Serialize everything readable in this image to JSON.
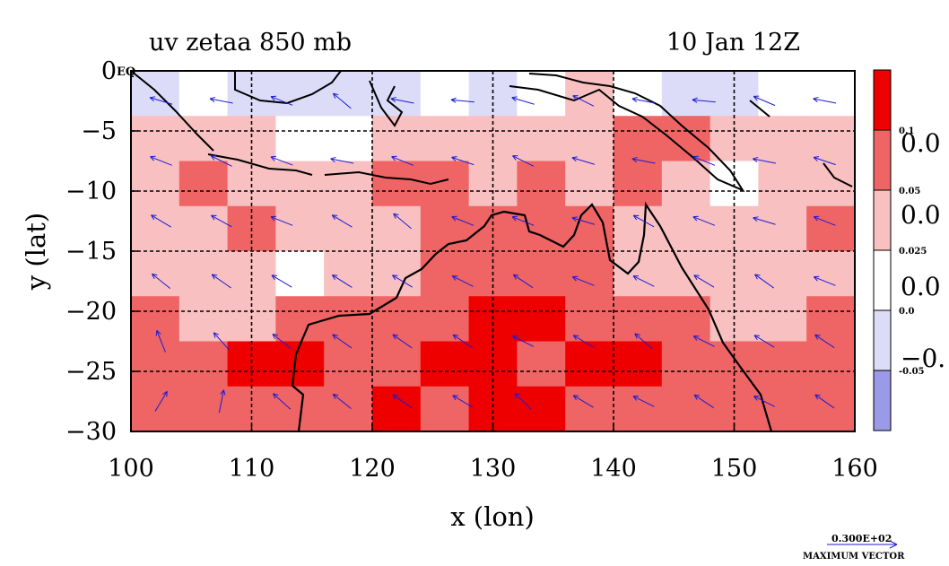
{
  "chart_data": {
    "type": "heatmap",
    "title": "uv zetaa 850 mb",
    "subtitle": "10 Jan 12Z",
    "xlabel": "x (lon)",
    "ylabel": "y (lat)",
    "xlim": [
      100,
      160
    ],
    "ylim": [
      -30,
      0
    ],
    "x_ticks": [
      "100",
      "110",
      "120",
      "130",
      "140",
      "150",
      "160"
    ],
    "y_ticks": [
      "0",
      "−5",
      "−10",
      "−15",
      "−20",
      "−25",
      "−30"
    ],
    "x_tick_values": [
      100,
      110,
      120,
      130,
      140,
      150,
      160
    ],
    "y_tick_values": [
      0,
      -5,
      -10,
      -15,
      -20,
      -25,
      -30
    ],
    "corner_label": "EQ",
    "grid": true,
    "colorbar": {
      "levels": [
        {
          "color": "#ef0000",
          "label": "0.1"
        },
        {
          "color": "#ef6464",
          "label": "0.05"
        },
        {
          "color": "#f8c0c0",
          "label": "0.025"
        },
        {
          "color": "#ffffff",
          "label": "0.0"
        },
        {
          "color": "#dcdcf8",
          "label": "-0.05"
        },
        {
          "color": "#9a9ae8",
          "label": ""
        }
      ],
      "right_labels": [
        "0.0",
        "0.0",
        "0.0",
        "−0."
      ]
    },
    "field_rows": [
      [
        -1,
        0,
        -1,
        -1,
        -1,
        -1,
        0,
        -1,
        0,
        1,
        0,
        -1,
        -1,
        0,
        0
      ],
      [
        1,
        1,
        1,
        0,
        0,
        1,
        1,
        1,
        1,
        1,
        2,
        2,
        1,
        1,
        1
      ],
      [
        1,
        2,
        1,
        1,
        1,
        2,
        2,
        1,
        2,
        1,
        2,
        1,
        0,
        1,
        1
      ],
      [
        1,
        1,
        2,
        1,
        1,
        1,
        2,
        2,
        2,
        2,
        1,
        1,
        1,
        1,
        2
      ],
      [
        1,
        1,
        1,
        0,
        1,
        1,
        2,
        2,
        2,
        2,
        1,
        1,
        1,
        1,
        1
      ],
      [
        2,
        1,
        1,
        2,
        2,
        2,
        2,
        3,
        3,
        2,
        2,
        2,
        1,
        1,
        2
      ],
      [
        2,
        2,
        3,
        3,
        2,
        2,
        3,
        3,
        2,
        3,
        3,
        2,
        2,
        2,
        2
      ],
      [
        2,
        2,
        2,
        2,
        2,
        3,
        2,
        3,
        3,
        2,
        2,
        2,
        2,
        2,
        2
      ]
    ],
    "vectors": {
      "max_vector_value": "0.300E+02",
      "max_vector_label": "MAXIMUM VECTOR",
      "color": "#1c1cd4",
      "u": [
        [
          -1,
          -1,
          -1,
          -0.6,
          -1,
          -1,
          -1,
          -0.8,
          -1,
          -1,
          -0.7,
          -1
        ],
        [
          -1,
          -1,
          -0.8,
          -1,
          -1,
          -0.9,
          -1,
          -1,
          -1,
          -1,
          -1,
          -0.9
        ],
        [
          -1,
          -0.9,
          -1,
          -1,
          -0.6,
          -1,
          -1,
          -1,
          -0.9,
          -1,
          -1,
          -1
        ],
        [
          -1,
          -1,
          -1,
          -0.8,
          -1,
          -1,
          -0.9,
          -1,
          -1,
          -1,
          -0.7,
          -1
        ],
        [
          -0.4,
          -0.8,
          -1,
          -1,
          -1,
          -0.9,
          -1,
          -1,
          -0.8,
          -1,
          -1,
          -0.9
        ],
        [
          0.6,
          0.2,
          -1,
          -1,
          -1,
          -1,
          -0.7,
          -1,
          -1,
          -0.9,
          -1,
          -1
        ]
      ],
      "v": [
        [
          0.3,
          0.2,
          0.4,
          0.5,
          0.2,
          0.1,
          0.3,
          0.4,
          0.2,
          0.1,
          0.3,
          0.2
        ],
        [
          0.4,
          0.5,
          0.3,
          0.2,
          0.4,
          0.3,
          0.5,
          0.3,
          0.2,
          0.4,
          0.2,
          0.3
        ],
        [
          0.6,
          0.5,
          0.4,
          0.6,
          0.5,
          0.4,
          0.4,
          0.3,
          0.5,
          0.4,
          0.3,
          0.4
        ],
        [
          0.8,
          0.7,
          0.6,
          0.5,
          0.6,
          0.5,
          0.6,
          0.4,
          0.5,
          0.6,
          0.5,
          0.4
        ],
        [
          1.0,
          0.9,
          0.8,
          0.7,
          0.7,
          0.6,
          0.5,
          0.6,
          0.7,
          0.5,
          0.6,
          0.6
        ],
        [
          1.0,
          1.0,
          0.9,
          0.8,
          0.7,
          0.6,
          0.7,
          0.6,
          0.5,
          0.6,
          0.5,
          0.7
        ]
      ]
    }
  }
}
